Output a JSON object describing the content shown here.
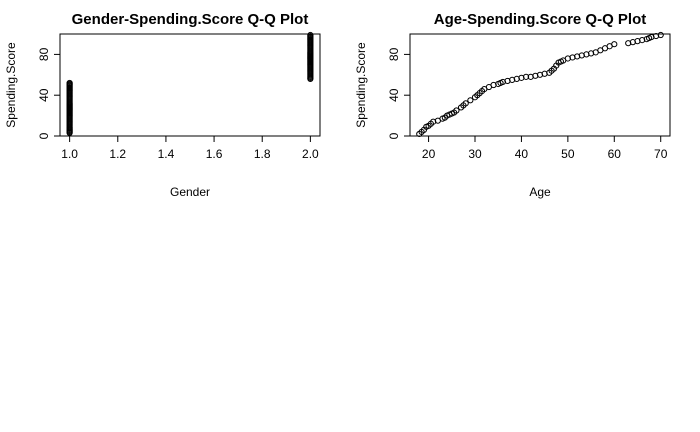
{
  "chart_data": [
    {
      "type": "scatter",
      "title": "Gender-Spending.Score Q-Q Plot",
      "xlabel": "Gender",
      "ylabel": "Spending.Score",
      "xlim": [
        0.96,
        2.04
      ],
      "ylim": [
        0,
        100
      ],
      "xticks": [
        "1.0",
        "1.2",
        "1.4",
        "1.6",
        "1.8",
        "2.0"
      ],
      "yticks": [
        "0",
        "40",
        "80"
      ],
      "grid": false,
      "marker": "open-circle",
      "groups": [
        {
          "x": 1,
          "y_range": [
            3,
            52
          ]
        },
        {
          "x": 2,
          "y_range": [
            56,
            99
          ]
        }
      ]
    },
    {
      "type": "scatter",
      "title": "Age-Spending.Score Q-Q Plot",
      "xlabel": "Age",
      "ylabel": "Spending.Score",
      "xlim": [
        16,
        72
      ],
      "ylim": [
        0,
        100
      ],
      "xticks": [
        "20",
        "30",
        "40",
        "50",
        "60",
        "70"
      ],
      "yticks": [
        "0",
        "40",
        "80"
      ],
      "grid": false,
      "marker": "open-circle",
      "x": [
        18,
        18.5,
        19,
        19.5,
        20,
        20.5,
        21,
        22,
        23,
        23.5,
        24,
        24.5,
        25,
        25.5,
        26,
        27,
        27.5,
        28,
        29,
        30,
        30.5,
        31,
        31.5,
        32,
        33,
        34,
        35,
        35.5,
        36,
        37,
        38,
        39,
        40,
        41,
        42,
        43,
        44,
        45,
        46,
        46.5,
        47,
        47.5,
        48,
        48.5,
        49,
        50,
        51,
        52,
        53,
        54,
        55,
        56,
        57,
        58,
        59,
        60,
        63,
        64,
        65,
        66,
        67,
        67.5,
        68,
        69,
        70
      ],
      "y": [
        2,
        4,
        6,
        9,
        10,
        12,
        14,
        15,
        17,
        18,
        20,
        21,
        22,
        23,
        25,
        28,
        30,
        32,
        35,
        38,
        40,
        42,
        44,
        46,
        48,
        50,
        51,
        52,
        53,
        54,
        55,
        56,
        57,
        58,
        58,
        59,
        60,
        61,
        62,
        64,
        66,
        69,
        72,
        73,
        74,
        76,
        77,
        78,
        79,
        80,
        81,
        82,
        84,
        86,
        88,
        90,
        91,
        92,
        93,
        94,
        95,
        96,
        97,
        98,
        99
      ]
    }
  ]
}
